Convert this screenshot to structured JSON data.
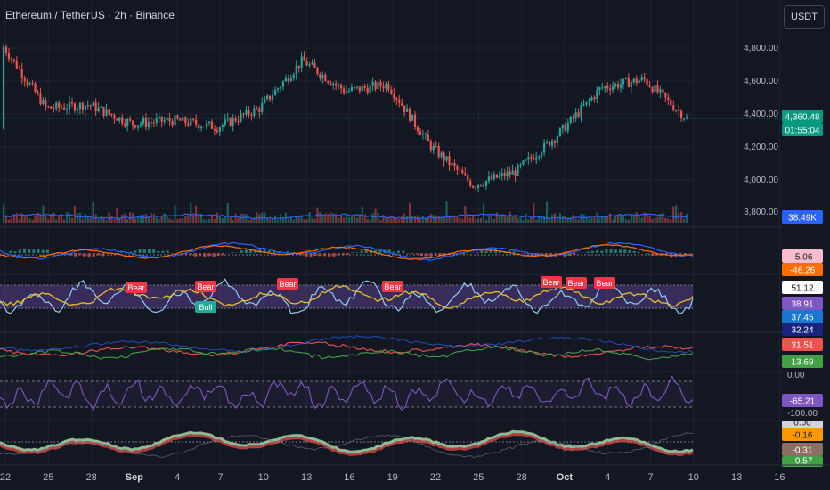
{
  "header": {
    "title": "Ethereum / TetherUS · 2h · Binance",
    "currency": "USDT"
  },
  "colors": {
    "bg": "#131722",
    "grid": "#1f2330",
    "up": "#26a69a",
    "down": "#ef5350",
    "volume_line": "#2962ff",
    "rsi_yellow": "#e6c229",
    "rsi_light": "#90caf9",
    "purple": "#7e57c2",
    "bear_label": "#f23645",
    "bull_label": "#22ab94",
    "price_tag": "#089981",
    "axis_text": "#b2b5be"
  },
  "price_axis": {
    "labels": [
      "4,800.00",
      "4,600.00",
      "4,400.00",
      "4,200.00",
      "4,000.00",
      "3,800.00"
    ],
    "current_price": "4,360.48",
    "countdown": "01:55:04",
    "volume_value": "38.49K"
  },
  "indicator_values": {
    "macd": [
      "-5.06",
      "-46.26"
    ],
    "rsi": [
      "51.12",
      "38.91",
      "37.45"
    ],
    "dmi": [
      "32.24",
      "31.51",
      "13.69"
    ],
    "williams": [
      "0.00",
      "-65.21",
      "-100.00"
    ],
    "bottom": [
      "0.00",
      "-0.16",
      "-0.31",
      "-0.57"
    ]
  },
  "signals": [
    {
      "label": "Bear",
      "type": "bear"
    },
    {
      "label": "Bull",
      "type": "bull"
    },
    {
      "label": "Bear",
      "type": "bear"
    },
    {
      "label": "Bear",
      "type": "bear"
    },
    {
      "label": "Bear",
      "type": "bear"
    },
    {
      "label": "Bear",
      "type": "bear"
    },
    {
      "label": "Bear",
      "type": "bear"
    },
    {
      "label": "Bear",
      "type": "bear"
    }
  ],
  "time_axis": {
    "labels": [
      "22",
      "25",
      "28",
      "Sep",
      "4",
      "7",
      "10",
      "13",
      "16",
      "19",
      "22",
      "25",
      "28",
      "Oct",
      "4",
      "7",
      "10",
      "13",
      "16"
    ]
  },
  "chart_data": {
    "type": "candlestick",
    "symbol": "Ethereum / TetherUS",
    "interval": "2h",
    "exchange": "Binance",
    "ylim": [
      3750,
      4950
    ],
    "x": [
      "Aug 22",
      "Aug 25",
      "Aug 28",
      "Sep 1",
      "Sep 4",
      "Sep 7",
      "Sep 10",
      "Sep 13",
      "Sep 16",
      "Sep 19",
      "Sep 22",
      "Sep 25",
      "Sep 28",
      "Oct 1",
      "Oct 4",
      "Oct 7",
      "Oct 10"
    ],
    "close": [
      4780,
      4420,
      4440,
      4330,
      4350,
      4310,
      4420,
      4700,
      4520,
      4560,
      4200,
      3970,
      4050,
      4270,
      4540,
      4590,
      4360
    ],
    "last_price": 4360.48,
    "volume_last": "38.49K",
    "macd_last": [
      -5.06,
      -46.26
    ],
    "rsi_last": [
      51.12,
      38.91,
      37.45
    ],
    "dmi_last": [
      32.24,
      31.51,
      13.69
    ],
    "williams_r_last": -65.21,
    "williams_r_levels": [
      0,
      -100
    ]
  }
}
